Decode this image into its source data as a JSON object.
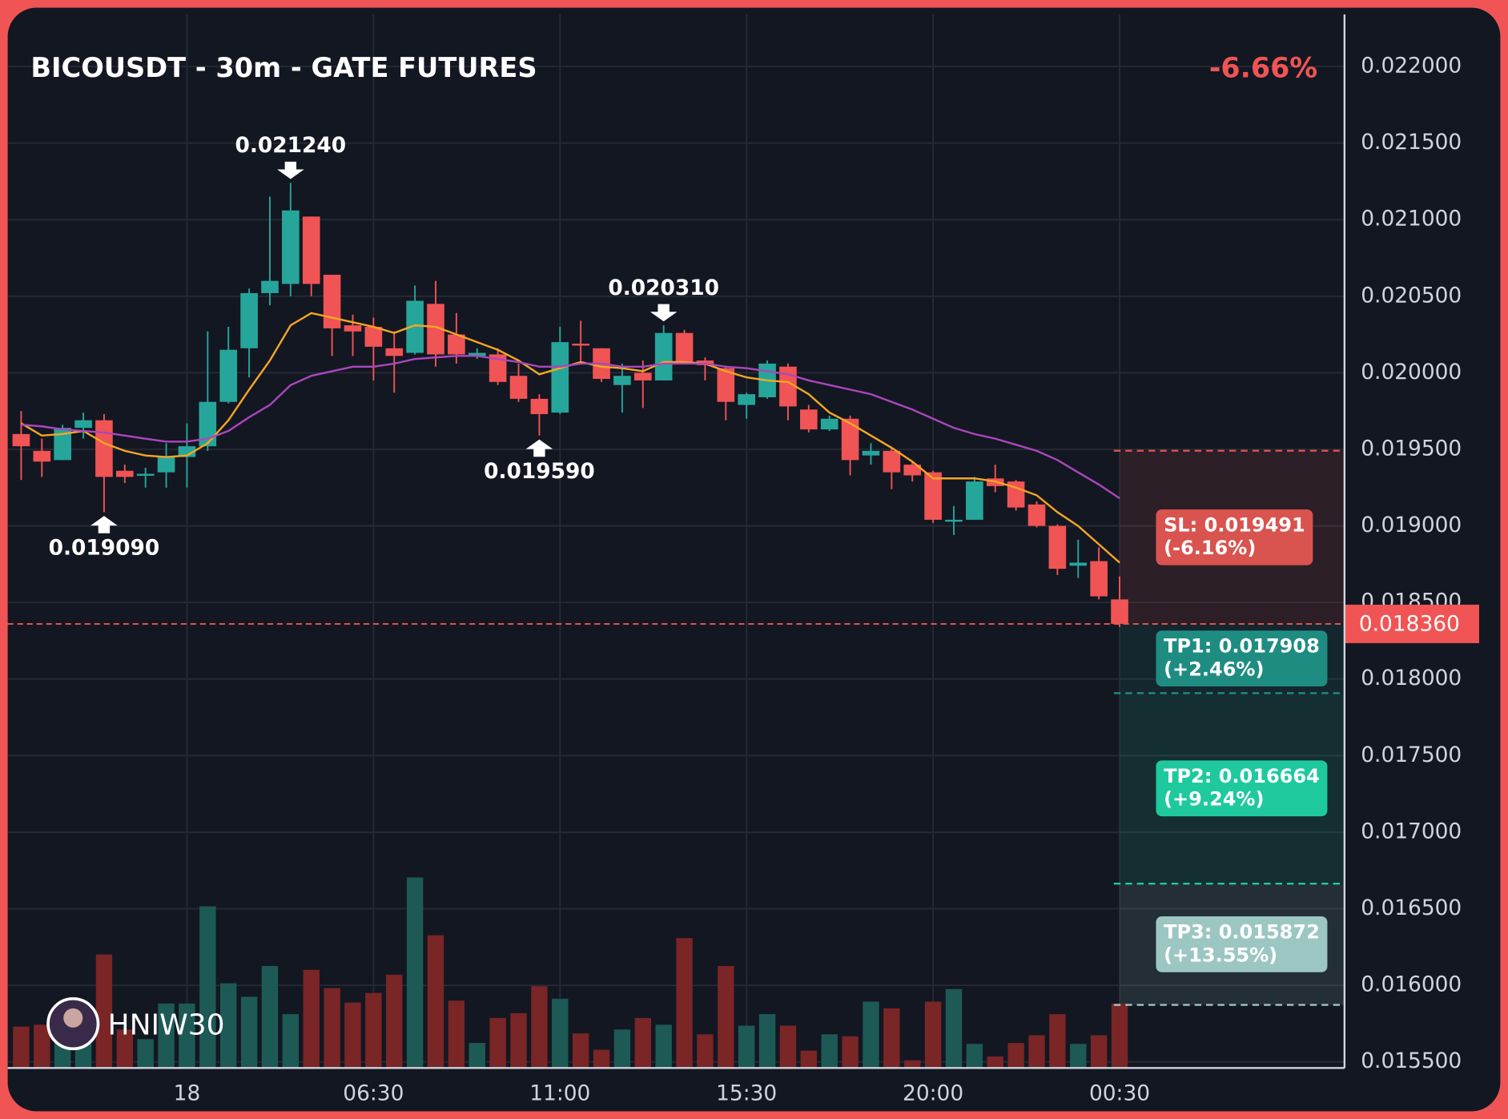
{
  "chart_data": {
    "type": "candlestick",
    "title": "BICOUSDT - 30m - GATE FUTURES",
    "change": {
      "value": -6.66,
      "label": "-6.66%"
    },
    "watermark": "HNIW30",
    "categories": [
      null,
      null,
      null,
      null,
      null,
      null,
      null,
      null,
      "18",
      null,
      null,
      null,
      null,
      null,
      null,
      null,
      null,
      "06:30",
      null,
      null,
      null,
      null,
      null,
      null,
      null,
      null,
      "11:00",
      null,
      null,
      null,
      null,
      null,
      null,
      null,
      null,
      "15:30",
      null,
      null,
      null,
      null,
      null,
      null,
      null,
      null,
      "20:00",
      null,
      null,
      null,
      null,
      null,
      null,
      null,
      null,
      "00:30"
    ],
    "open": [
      0.0196,
      0.01949,
      0.01943,
      0.01964,
      0.01969,
      0.01936,
      0.01933,
      0.01935,
      0.01945,
      0.01952,
      0.01981,
      0.02016,
      0.02052,
      0.02058,
      0.02102,
      0.02064,
      0.02031,
      0.0203,
      0.02016,
      0.02013,
      0.02045,
      0.02025,
      0.02011,
      0.02012,
      0.01998,
      0.01983,
      0.01974,
      0.02019,
      0.02016,
      0.01992,
      0.02,
      0.01995,
      0.02026,
      0.02008,
      0.02003,
      0.01979,
      0.01984,
      0.02004,
      0.01976,
      0.01963,
      0.0197,
      0.01946,
      0.01949,
      0.0194,
      0.01935,
      0.01903,
      0.01904,
      0.01931,
      0.01929,
      0.01914,
      0.019,
      0.01874,
      0.01877,
      0.01852
    ],
    "high": [
      0.01975,
      0.01957,
      0.01966,
      0.01974,
      0.01973,
      0.0194,
      0.01938,
      0.01954,
      0.01967,
      0.02027,
      0.0203,
      0.02055,
      0.02115,
      0.02124,
      0.02102,
      0.02064,
      0.02038,
      0.02036,
      0.02027,
      0.02057,
      0.0206,
      0.02039,
      0.02016,
      0.02016,
      0.02006,
      0.01986,
      0.0203,
      0.02034,
      0.02016,
      0.02006,
      0.02008,
      0.02031,
      0.02028,
      0.0201,
      0.02004,
      0.01987,
      0.02008,
      0.02006,
      0.01979,
      0.01972,
      0.01972,
      0.01954,
      0.01951,
      0.01942,
      0.01936,
      0.01913,
      0.01932,
      0.0194,
      0.0193,
      0.01916,
      0.01901,
      0.01891,
      0.01886,
      0.01867
    ],
    "low": [
      0.0193,
      0.01932,
      0.01943,
      0.01957,
      0.01909,
      0.01928,
      0.01925,
      0.01925,
      0.01925,
      0.01949,
      0.0198,
      0.01997,
      0.02044,
      0.0205,
      0.0205,
      0.02011,
      0.02011,
      0.01995,
      0.01987,
      0.02012,
      0.02004,
      0.02006,
      0.02009,
      0.01992,
      0.01981,
      0.01959,
      0.01973,
      0.02006,
      0.01994,
      0.01974,
      0.01977,
      0.01995,
      0.02006,
      0.01995,
      0.01969,
      0.0197,
      0.01983,
      0.01969,
      0.01961,
      0.01962,
      0.01933,
      0.0194,
      0.01924,
      0.01929,
      0.01902,
      0.01894,
      0.01904,
      0.01922,
      0.0191,
      0.01899,
      0.01868,
      0.01866,
      0.01852,
      0.01834
    ],
    "close": [
      0.01952,
      0.01942,
      0.01964,
      0.01969,
      0.01932,
      0.01932,
      0.01934,
      0.01945,
      0.01952,
      0.01981,
      0.02015,
      0.02052,
      0.0206,
      0.02106,
      0.02058,
      0.02029,
      0.02027,
      0.02017,
      0.02011,
      0.02047,
      0.02012,
      0.02012,
      0.02013,
      0.01994,
      0.01983,
      0.01973,
      0.0202,
      0.02018,
      0.01996,
      0.01998,
      0.01995,
      0.02026,
      0.02007,
      0.02005,
      0.01981,
      0.01986,
      0.02006,
      0.01978,
      0.01963,
      0.0197,
      0.01943,
      0.01949,
      0.01935,
      0.01933,
      0.01904,
      0.01904,
      0.01929,
      0.01926,
      0.01912,
      0.019,
      0.01872,
      0.01876,
      0.01854,
      0.01836
    ],
    "up_color": "#26a69a",
    "down_color": "#f05454",
    "volume": {
      "values": [
        43,
        45,
        35,
        30,
        118,
        40,
        30,
        67,
        67,
        168,
        88,
        74,
        106,
        56,
        102,
        83,
        68,
        78,
        97,
        198,
        138,
        70,
        26,
        52,
        57,
        85,
        72,
        36,
        19,
        40,
        52,
        45,
        135,
        35,
        106,
        44,
        56,
        44,
        18,
        35,
        33,
        69,
        62,
        8,
        69,
        82,
        25,
        12,
        26,
        34,
        56,
        25,
        34,
        67
      ],
      "up_color": "#1d5a55",
      "down_color": "#7a2526"
    },
    "series": [
      {
        "color": "#f5a623",
        "values": [
          0.01967,
          0.01959,
          0.0196,
          0.01962,
          0.01954,
          0.01949,
          0.01946,
          0.01945,
          0.01946,
          0.01954,
          0.01969,
          0.01989,
          0.02008,
          0.02031,
          0.02039,
          0.02036,
          0.02033,
          0.0203,
          0.02026,
          0.02031,
          0.0203,
          0.02025,
          0.0202,
          0.02015,
          0.02008,
          0.01999,
          0.02003,
          0.02007,
          0.02004,
          0.02003,
          0.02001,
          0.02007,
          0.02007,
          0.02006,
          0.02001,
          0.01997,
          0.01995,
          0.01994,
          0.01986,
          0.01974,
          0.01967,
          0.01959,
          0.01951,
          0.01942,
          0.01931,
          0.01931,
          0.01931,
          0.01929,
          0.01925,
          0.0192,
          0.01909,
          0.019,
          0.01888,
          0.01876
        ]
      },
      {
        "color": "#ab47bc",
        "values": [
          0.01966,
          0.01965,
          0.01963,
          0.01962,
          0.01961,
          0.01959,
          0.01957,
          0.01955,
          0.01955,
          0.01957,
          0.01962,
          0.01971,
          0.01979,
          0.01992,
          0.01998,
          0.02001,
          0.02004,
          0.02004,
          0.02006,
          0.02009,
          0.0201,
          0.02011,
          0.02011,
          0.02009,
          0.02007,
          0.02004,
          0.02004,
          0.02006,
          0.02006,
          0.02004,
          0.02004,
          0.02006,
          0.02006,
          0.02006,
          0.02004,
          0.02003,
          0.02001,
          0.01999,
          0.01995,
          0.01992,
          0.01989,
          0.01986,
          0.01981,
          0.01976,
          0.0197,
          0.01964,
          0.0196,
          0.01957,
          0.01953,
          0.01949,
          0.01943,
          0.01935,
          0.01927,
          0.01918
        ]
      }
    ],
    "annotations": [
      {
        "value": 0.01909,
        "label": "0.019090"
      },
      {
        "value": 0.02124,
        "label": "0.021240"
      },
      {
        "value": 0.01959,
        "label": "0.019590"
      },
      {
        "value": 0.02031,
        "label": "0.020310"
      }
    ],
    "last_price": {
      "value": 0.01836,
      "label": "0.018360",
      "color": "#f05454"
    },
    "levels": [
      {
        "value": 0.019491,
        "label": "SL: 0.019491",
        "change": {
          "value": -6.16,
          "label": "(-6.16%)"
        },
        "color": "#d9534f"
      },
      {
        "value": 0.017908,
        "label": "TP1: 0.017908",
        "change": {
          "value": 2.46,
          "label": "(+2.46%)"
        },
        "color": "#1f8c82"
      },
      {
        "value": 0.016664,
        "label": "TP2: 0.016664",
        "change": {
          "value": 9.24,
          "label": "(+9.24%)"
        },
        "color": "#1ec99e"
      },
      {
        "value": 0.015872,
        "label": "TP3: 0.015872",
        "change": {
          "value": 13.55,
          "label": "(+13.55%)"
        },
        "color": "#9cc6c2"
      }
    ],
    "ylim": [
      0.01546,
      0.02234
    ],
    "yticks": [
      {
        "value": 0.0155,
        "label": "0.015500"
      },
      {
        "value": 0.016,
        "label": "0.016000"
      },
      {
        "value": 0.0165,
        "label": "0.016500"
      },
      {
        "value": 0.017,
        "label": "0.017000"
      },
      {
        "value": 0.0175,
        "label": "0.017500"
      },
      {
        "value": 0.018,
        "label": "0.018000"
      },
      {
        "value": 0.0185,
        "label": "0.018500"
      },
      {
        "value": 0.019,
        "label": "0.019000"
      },
      {
        "value": 0.0195,
        "label": "0.019500"
      },
      {
        "value": 0.02,
        "label": "0.020000"
      },
      {
        "value": 0.0205,
        "label": "0.020500"
      },
      {
        "value": 0.021,
        "label": "0.021000"
      },
      {
        "value": 0.0215,
        "label": "0.021500"
      },
      {
        "value": 0.022,
        "label": "0.022000"
      }
    ],
    "grid": true
  }
}
